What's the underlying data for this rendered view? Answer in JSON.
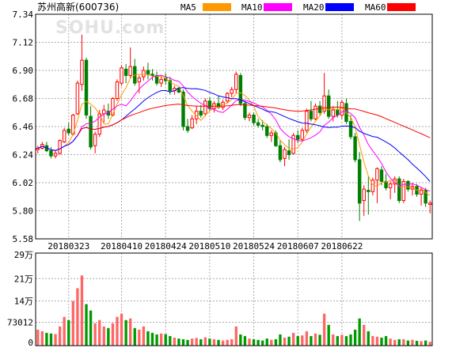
{
  "chart_data": {
    "type": "candlestick",
    "title": "苏州高新(600736)",
    "watermark": "SOHU.com",
    "legend": [
      {
        "name": "MA5",
        "color": "#ff9900"
      },
      {
        "name": "MA10",
        "color": "#ff00ff"
      },
      {
        "name": "MA20",
        "color": "#0000ff"
      },
      {
        "name": "MA60",
        "color": "#ff0000"
      }
    ],
    "colors": {
      "up": "#ff0000",
      "up_fill": "#ffffff",
      "down": "#008000",
      "volume_up": "#ff6666",
      "volume_down": "#009900",
      "grid": "#aaaaaa"
    },
    "price_axis": {
      "min": 5.58,
      "max": 7.34,
      "ticks": [
        "7.34",
        "7.12",
        "6.90",
        "6.68",
        "6.46",
        "6.24",
        "6.02",
        "5.80",
        "5.58"
      ]
    },
    "volume_axis": {
      "min": 0,
      "max": 290000,
      "ticks": [
        {
          "label": "29万",
          "value": 290000
        },
        {
          "label": "21万",
          "value": 210000
        },
        {
          "label": "14万",
          "value": 140000
        },
        {
          "label": "73012",
          "value": 73012
        },
        {
          "label": "0",
          "value": 0
        }
      ]
    },
    "x_labels": [
      {
        "label": "20180323",
        "index": 7
      },
      {
        "label": "20180410",
        "index": 19
      },
      {
        "label": "20180424",
        "index": 29
      },
      {
        "label": "20180510",
        "index": 39
      },
      {
        "label": "20180524",
        "index": 49
      },
      {
        "label": "20180607",
        "index": 59
      },
      {
        "label": "20180622",
        "index": 69
      }
    ],
    "ohlc": [
      [
        6.28,
        6.31,
        6.25,
        6.29
      ],
      [
        6.29,
        6.34,
        6.28,
        6.32
      ],
      [
        6.31,
        6.34,
        6.26,
        6.27
      ],
      [
        6.27,
        6.3,
        6.21,
        6.23
      ],
      [
        6.23,
        6.27,
        6.21,
        6.25
      ],
      [
        6.25,
        6.36,
        6.24,
        6.35
      ],
      [
        6.34,
        6.45,
        6.33,
        6.43
      ],
      [
        6.44,
        6.49,
        6.39,
        6.41
      ],
      [
        6.4,
        6.56,
        6.39,
        6.55
      ],
      [
        6.56,
        6.82,
        6.55,
        6.8
      ],
      [
        6.79,
        7.18,
        6.74,
        6.98
      ],
      [
        6.98,
        7.0,
        6.52,
        6.55
      ],
      [
        6.54,
        6.62,
        6.28,
        6.3
      ],
      [
        6.31,
        6.42,
        6.25,
        6.4
      ],
      [
        6.4,
        6.59,
        6.38,
        6.56
      ],
      [
        6.56,
        6.63,
        6.49,
        6.59
      ],
      [
        6.58,
        6.64,
        6.52,
        6.55
      ],
      [
        6.55,
        6.69,
        6.54,
        6.68
      ],
      [
        6.68,
        6.83,
        6.66,
        6.81
      ],
      [
        6.8,
        6.94,
        6.78,
        6.92
      ],
      [
        6.91,
        6.95,
        6.8,
        6.86
      ],
      [
        6.86,
        7.08,
        6.84,
        6.93
      ],
      [
        6.93,
        6.99,
        6.78,
        6.8
      ],
      [
        6.81,
        6.86,
        6.72,
        6.84
      ],
      [
        6.85,
        6.93,
        6.82,
        6.9
      ],
      [
        6.9,
        6.96,
        6.83,
        6.87
      ],
      [
        6.87,
        6.91,
        6.82,
        6.86
      ],
      [
        6.86,
        6.89,
        6.78,
        6.8
      ],
      [
        6.8,
        6.86,
        6.77,
        6.83
      ],
      [
        6.84,
        6.88,
        6.79,
        6.82
      ],
      [
        6.82,
        6.85,
        6.71,
        6.74
      ],
      [
        6.74,
        6.78,
        6.71,
        6.76
      ],
      [
        6.76,
        6.77,
        6.72,
        6.73
      ],
      [
        6.73,
        6.75,
        6.43,
        6.46
      ],
      [
        6.46,
        6.52,
        6.41,
        6.43
      ],
      [
        6.45,
        6.55,
        6.44,
        6.52
      ],
      [
        6.52,
        6.62,
        6.48,
        6.58
      ],
      [
        6.58,
        6.63,
        6.53,
        6.55
      ],
      [
        6.56,
        6.68,
        6.54,
        6.66
      ],
      [
        6.66,
        6.69,
        6.58,
        6.6
      ],
      [
        6.6,
        6.66,
        6.57,
        6.64
      ],
      [
        6.64,
        6.7,
        6.6,
        6.61
      ],
      [
        6.61,
        6.67,
        6.59,
        6.65
      ],
      [
        6.66,
        6.73,
        6.64,
        6.72
      ],
      [
        6.72,
        6.77,
        6.69,
        6.75
      ],
      [
        6.75,
        6.89,
        6.72,
        6.87
      ],
      [
        6.86,
        6.88,
        6.62,
        6.64
      ],
      [
        6.64,
        6.66,
        6.51,
        6.53
      ],
      [
        6.53,
        6.57,
        6.5,
        6.55
      ],
      [
        6.55,
        6.57,
        6.47,
        6.49
      ],
      [
        6.49,
        6.52,
        6.45,
        6.47
      ],
      [
        6.47,
        6.51,
        6.43,
        6.46
      ],
      [
        6.46,
        6.48,
        6.37,
        6.39
      ],
      [
        6.39,
        6.43,
        6.34,
        6.41
      ],
      [
        6.41,
        6.43,
        6.3,
        6.31
      ],
      [
        6.31,
        6.35,
        6.18,
        6.2
      ],
      [
        6.21,
        6.3,
        6.15,
        6.28
      ],
      [
        6.27,
        6.36,
        6.2,
        6.24
      ],
      [
        6.25,
        6.41,
        6.24,
        6.39
      ],
      [
        6.39,
        6.43,
        6.33,
        6.36
      ],
      [
        6.36,
        6.45,
        6.34,
        6.43
      ],
      [
        6.43,
        6.6,
        6.41,
        6.58
      ],
      [
        6.58,
        6.66,
        6.5,
        6.52
      ],
      [
        6.52,
        6.64,
        6.51,
        6.62
      ],
      [
        6.62,
        6.66,
        6.55,
        6.57
      ],
      [
        6.58,
        6.88,
        6.56,
        6.7
      ],
      [
        6.7,
        6.75,
        6.52,
        6.54
      ],
      [
        6.54,
        6.62,
        6.5,
        6.59
      ],
      [
        6.59,
        6.66,
        6.53,
        6.55
      ],
      [
        6.55,
        6.67,
        6.52,
        6.65
      ],
      [
        6.64,
        6.68,
        6.48,
        6.5
      ],
      [
        6.5,
        6.55,
        6.36,
        6.38
      ],
      [
        6.38,
        6.41,
        6.18,
        6.2
      ],
      [
        6.2,
        6.26,
        5.72,
        5.86
      ],
      [
        5.88,
        6.0,
        5.76,
        5.97
      ],
      [
        5.96,
        6.07,
        5.77,
        5.95
      ],
      [
        5.95,
        6.06,
        5.92,
        6.04
      ],
      [
        6.04,
        6.14,
        5.86,
        6.13
      ],
      [
        6.12,
        6.15,
        6.0,
        6.03
      ],
      [
        6.03,
        6.09,
        5.96,
        5.98
      ],
      [
        5.98,
        6.03,
        5.89,
        6.01
      ],
      [
        6.01,
        6.07,
        5.94,
        6.05
      ],
      [
        6.05,
        6.07,
        5.86,
        5.88
      ],
      [
        5.88,
        6.05,
        5.86,
        6.03
      ],
      [
        6.03,
        6.04,
        5.95,
        5.97
      ],
      [
        5.97,
        6.02,
        5.92,
        5.99
      ],
      [
        5.99,
        6.01,
        5.91,
        5.93
      ],
      [
        5.93,
        5.98,
        5.84,
        5.96
      ],
      [
        5.96,
        5.98,
        5.83,
        5.86
      ],
      [
        5.85,
        5.88,
        5.78,
        5.86
      ]
    ],
    "volume": [
      50000,
      45000,
      40000,
      38000,
      36000,
      60000,
      90000,
      80000,
      140000,
      180000,
      220000,
      130000,
      110000,
      70000,
      80000,
      60000,
      55000,
      70000,
      90000,
      100000,
      80000,
      85000,
      55000,
      50000,
      60000,
      45000,
      40000,
      35000,
      38000,
      36000,
      30000,
      25000,
      22000,
      20000,
      18000,
      22000,
      24000,
      20000,
      26000,
      22000,
      20000,
      18000,
      16000,
      18000,
      20000,
      60000,
      35000,
      30000,
      22000,
      20000,
      18000,
      16000,
      22000,
      18000,
      20000,
      35000,
      25000,
      28000,
      40000,
      30000,
      32000,
      45000,
      30000,
      38000,
      34000,
      100000,
      65000,
      35000,
      30000,
      34000,
      30000,
      35000,
      50000,
      85000,
      65000,
      45000,
      30000,
      28000,
      25000,
      30000,
      22000,
      18000,
      20000,
      20000,
      16000,
      18000,
      15000,
      14000,
      16000,
      12000
    ]
  }
}
